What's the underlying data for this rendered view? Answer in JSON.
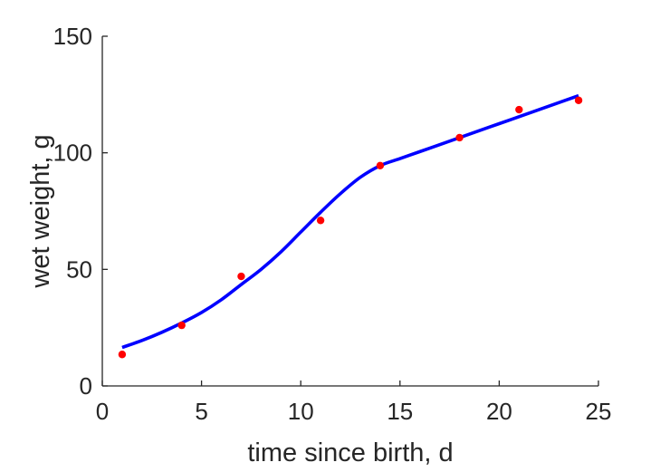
{
  "chart_data": {
    "type": "scatter",
    "title": "",
    "xlabel": "time since birth, d",
    "ylabel": "wet weight, g",
    "xlim": [
      0,
      25
    ],
    "ylim": [
      0,
      150
    ],
    "xticks": [
      0,
      5,
      10,
      15,
      20,
      25
    ],
    "yticks": [
      0,
      50,
      100,
      150
    ],
    "xtick_labels": [
      "0",
      "5",
      "10",
      "15",
      "20",
      "25"
    ],
    "ytick_labels": [
      "0",
      "50",
      "100",
      "150"
    ],
    "grid": false,
    "legend": "none",
    "series": [
      {
        "type": "scatter",
        "color": "#ff0000",
        "x": [
          1,
          4,
          7,
          11,
          14,
          18,
          21,
          24
        ],
        "y": [
          13.5,
          26,
          47,
          71,
          94.5,
          106.5,
          118.5,
          122.5
        ]
      },
      {
        "type": "line",
        "color": "#0000ff",
        "x": [
          1,
          2,
          3,
          4,
          5,
          6,
          7,
          8,
          9,
          10,
          11,
          12,
          13,
          14,
          15,
          16,
          17,
          18,
          19,
          20,
          21,
          22,
          23,
          24
        ],
        "y": [
          16.5,
          19.5,
          23,
          27,
          31.5,
          37,
          43.5,
          50,
          57.5,
          66,
          74.5,
          82.5,
          89.5,
          94.5,
          97.5,
          100.5,
          103.5,
          106.5,
          109.5,
          112.5,
          115.5,
          118.5,
          121.5,
          124.5
        ]
      }
    ]
  }
}
